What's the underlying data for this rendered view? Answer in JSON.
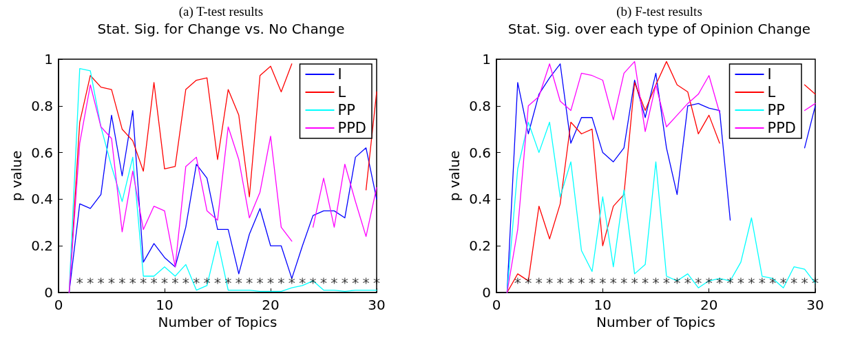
{
  "chart_data": [
    {
      "type": "line",
      "title": "(a) T-test results",
      "subtitle": "Stat. Sig. for Change vs. No Change",
      "xlabel": "Number of Topics",
      "ylabel": "p value",
      "x": [
        1,
        2,
        3,
        4,
        5,
        6,
        7,
        8,
        9,
        10,
        11,
        12,
        13,
        14,
        15,
        16,
        17,
        18,
        19,
        20,
        21,
        22,
        23,
        24,
        25,
        26,
        27,
        28,
        29,
        30
      ],
      "xlim": [
        0,
        30
      ],
      "xticks": [
        0,
        10,
        20,
        30
      ],
      "ylim": [
        0,
        1
      ],
      "yticks": [
        0,
        0.2,
        0.4,
        0.6,
        0.8,
        1
      ],
      "grid": false,
      "legend": "top right",
      "marker": "none",
      "line_style": "solid",
      "series": [
        {
          "name": "I",
          "color": "#0000ff",
          "values": [
            0,
            0.38,
            0.36,
            0.42,
            0.76,
            0.5,
            0.78,
            0.13,
            0.21,
            0.15,
            0.11,
            0.28,
            0.55,
            0.49,
            0.27,
            0.27,
            0.08,
            0.25,
            0.36,
            0.2,
            0.2,
            0.06,
            0.2,
            0.33,
            0.35,
            0.35,
            0.32,
            0.58,
            0.62,
            0.4
          ]
        },
        {
          "name": "L",
          "color": "#ff0000",
          "values": [
            0,
            0.73,
            0.93,
            0.88,
            0.87,
            0.7,
            0.65,
            0.52,
            0.9,
            0.53,
            0.54,
            0.87,
            0.91,
            0.92,
            0.57,
            0.87,
            0.76,
            0.41,
            0.93,
            0.97,
            0.86,
            0.98,
            null,
            null,
            null,
            null,
            null,
            null,
            0.44,
            0.86
          ]
        },
        {
          "name": "PP",
          "color": "#00ffff",
          "values": [
            0,
            0.96,
            0.95,
            0.71,
            0.54,
            0.39,
            0.58,
            0.07,
            0.07,
            0.11,
            0.07,
            0.12,
            0.01,
            0.03,
            0.22,
            0.01,
            0.01,
            0.01,
            0.005,
            0.005,
            0.005,
            0.02,
            0.03,
            0.05,
            0.01,
            0.01,
            0.005,
            0.01,
            0.01,
            0.01
          ]
        },
        {
          "name": "PPD",
          "color": "#ff00ff",
          "values": [
            0,
            0.64,
            0.89,
            0.71,
            0.66,
            0.26,
            0.52,
            0.27,
            0.37,
            0.35,
            0.11,
            0.54,
            0.58,
            0.35,
            0.31,
            0.71,
            0.57,
            0.32,
            0.43,
            0.67,
            0.28,
            0.22,
            null,
            0.28,
            0.49,
            0.28,
            0.55,
            0.39,
            0.24,
            0.45
          ]
        },
        {
          "type": "scatter",
          "marker": "star",
          "color": "#000000",
          "x": [
            2,
            3,
            4,
            5,
            6,
            7,
            8,
            9,
            10,
            11,
            12,
            13,
            14,
            15,
            16,
            17,
            18,
            19,
            20,
            21,
            22,
            23,
            24,
            25,
            26,
            27,
            28,
            29,
            30
          ],
          "values": [
            0.05,
            0.05,
            0.05,
            0.05,
            0.05,
            0.05,
            0.05,
            0.05,
            0.05,
            0.05,
            0.05,
            0.05,
            0.05,
            0.05,
            0.05,
            0.05,
            0.05,
            0.05,
            0.05,
            0.05,
            0.05,
            0.05,
            0.05,
            0.05,
            0.05,
            0.05,
            0.05,
            0.05,
            0.05
          ]
        }
      ]
    },
    {
      "type": "line",
      "title": "(b) F-test results",
      "subtitle": "Stat. Sig. over each type of Opinion Change",
      "xlabel": "Number of Topics",
      "ylabel": "p value",
      "x": [
        1,
        2,
        3,
        4,
        5,
        6,
        7,
        8,
        9,
        10,
        11,
        12,
        13,
        14,
        15,
        16,
        17,
        18,
        19,
        20,
        21,
        22,
        23,
        24,
        25,
        26,
        27,
        28,
        29,
        30
      ],
      "xlim": [
        0,
        30
      ],
      "xticks": [
        0,
        10,
        20,
        30
      ],
      "ylim": [
        0,
        1
      ],
      "yticks": [
        0,
        0.2,
        0.4,
        0.6,
        0.8,
        1
      ],
      "grid": false,
      "legend": "top right",
      "marker": "none",
      "line_style": "solid",
      "series": [
        {
          "name": "I",
          "color": "#0000ff",
          "values": [
            0,
            0.9,
            0.68,
            0.85,
            0.92,
            0.98,
            0.64,
            0.75,
            0.75,
            0.6,
            0.56,
            0.62,
            0.91,
            0.75,
            0.94,
            0.62,
            0.42,
            0.8,
            0.81,
            0.79,
            0.78,
            0.31,
            null,
            null,
            null,
            null,
            null,
            null,
            0.62,
            0.8
          ]
        },
        {
          "name": "L",
          "color": "#ff0000",
          "values": [
            0,
            0.08,
            0.05,
            0.37,
            0.23,
            0.38,
            0.73,
            0.68,
            0.7,
            0.2,
            0.37,
            0.42,
            0.9,
            0.78,
            0.89,
            0.99,
            0.89,
            0.86,
            0.68,
            0.76,
            0.64,
            null,
            null,
            null,
            null,
            null,
            null,
            null,
            0.89,
            0.85
          ]
        },
        {
          "name": "PP",
          "color": "#00ffff",
          "values": [
            0,
            0.53,
            0.73,
            0.6,
            0.73,
            0.41,
            0.56,
            0.18,
            0.09,
            0.41,
            0.11,
            0.44,
            0.08,
            0.12,
            0.56,
            0.07,
            0.05,
            0.08,
            0.02,
            0.05,
            0.06,
            0.05,
            0.13,
            0.32,
            0.07,
            0.06,
            0.02,
            0.11,
            0.1,
            0.04
          ]
        },
        {
          "name": "PPD",
          "color": "#ff00ff",
          "values": [
            0,
            0.27,
            0.8,
            0.84,
            0.98,
            0.82,
            0.78,
            0.94,
            0.93,
            0.91,
            0.74,
            0.94,
            0.99,
            0.69,
            0.89,
            0.71,
            0.76,
            0.81,
            0.85,
            0.93,
            0.77,
            null,
            null,
            null,
            null,
            null,
            null,
            null,
            0.78,
            0.81
          ]
        },
        {
          "type": "scatter",
          "marker": "star",
          "color": "#000000",
          "x": [
            2,
            3,
            4,
            5,
            6,
            7,
            8,
            9,
            10,
            11,
            12,
            13,
            14,
            15,
            16,
            17,
            18,
            19,
            20,
            21,
            22,
            23,
            24,
            25,
            26,
            27,
            28,
            29,
            30
          ],
          "values": [
            0.05,
            0.05,
            0.05,
            0.05,
            0.05,
            0.05,
            0.05,
            0.05,
            0.05,
            0.05,
            0.05,
            0.05,
            0.05,
            0.05,
            0.05,
            0.05,
            0.05,
            0.05,
            0.05,
            0.05,
            0.05,
            0.05,
            0.05,
            0.05,
            0.05,
            0.05,
            0.05,
            0.05,
            0.05
          ]
        }
      ]
    }
  ]
}
